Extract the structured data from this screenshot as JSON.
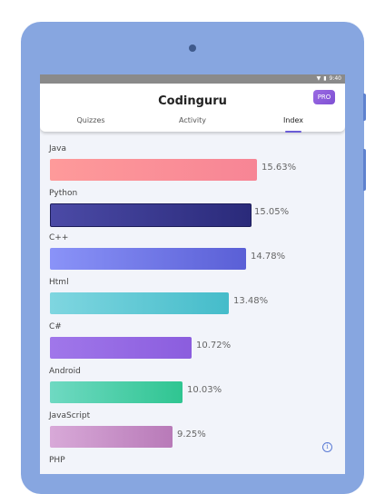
{
  "status_bar": {
    "time": "9:40",
    "wifi_icon": "wifi-icon",
    "battery_icon": "battery-icon"
  },
  "app": {
    "title": "Codinguru",
    "pro_label": "PRO"
  },
  "tabs": [
    {
      "label": "Quizzes",
      "active": false
    },
    {
      "label": "Activity",
      "active": false
    },
    {
      "label": "Index",
      "active": true
    }
  ],
  "languages": [
    {
      "name": "Java",
      "percent_label": "15.63%",
      "value": 15.63,
      "colors": [
        "#fe9a9a",
        "#f78595"
      ]
    },
    {
      "name": "Python",
      "percent_label": "15.05%",
      "value": 15.05,
      "colors": [
        "#4b4aa6",
        "#2a2a7a"
      ]
    },
    {
      "name": "C++",
      "percent_label": "14.78%",
      "value": 14.78,
      "colors": [
        "#8a93f8",
        "#5a5fd6"
      ]
    },
    {
      "name": "Html",
      "percent_label": "13.48%",
      "value": 13.48,
      "colors": [
        "#7fd6e0",
        "#45bcca"
      ]
    },
    {
      "name": "C#",
      "percent_label": "10.72%",
      "value": 10.72,
      "colors": [
        "#a077ea",
        "#8b5dde"
      ]
    },
    {
      "name": "Android",
      "percent_label": "10.03%",
      "value": 10.03,
      "colors": [
        "#6fd9c2",
        "#2fc591"
      ]
    },
    {
      "name": "JavaScript",
      "percent_label": "9.25%",
      "value": 9.25,
      "colors": [
        "#d8a9d8",
        "#b87ab8"
      ]
    },
    {
      "name": "PHP",
      "percent_label": "",
      "value": null,
      "colors": [
        "#9aa8e8",
        "#7b88d8"
      ]
    }
  ],
  "info_icon": "info-icon"
}
